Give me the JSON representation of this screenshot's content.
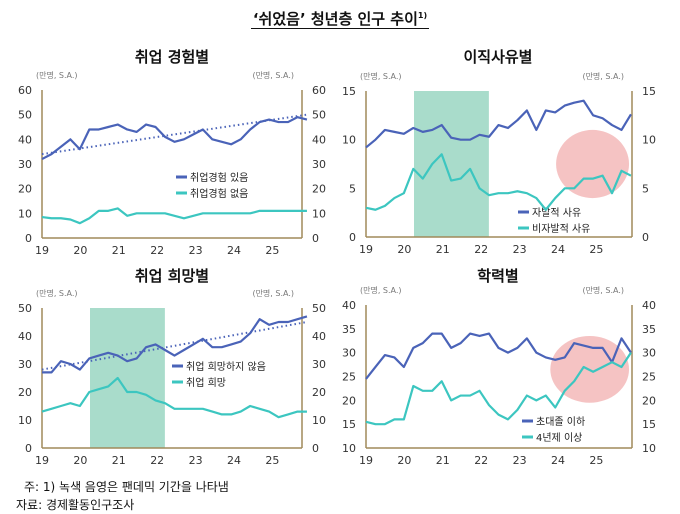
{
  "title": "‘쉬었음’ 청년층 인구 추이",
  "title_sup": "1)",
  "notes": {
    "note": "주: 1) 녹색 음영은 팬데믹 기간을 나타냄",
    "source": "자료: 경제활동인구조사"
  },
  "colors": {
    "blue": "#4a63b8",
    "cyan": "#3cc6c0",
    "shade": "#a9dccb",
    "highlight": "#f3b8b8",
    "axis": "#a08a5a",
    "trend": "#4a63b8"
  },
  "chart_data": [
    {
      "type": "line",
      "title": "취업 경험별",
      "unit_left": "(만명, S.A.)",
      "unit_right": "(만명, S.A.)",
      "xlim": [
        2019,
        2025.9
      ],
      "ylim": [
        0,
        60
      ],
      "yticks": [
        0,
        10,
        20,
        30,
        40,
        50,
        60
      ],
      "xticks": [
        "19",
        "20",
        "21",
        "22",
        "23",
        "24",
        "25"
      ],
      "shade": null,
      "highlight": null,
      "series": [
        {
          "name": "취업경험 있음",
          "color": "blue",
          "values": [
            32,
            34,
            37,
            40,
            36,
            44,
            44,
            45,
            46,
            44,
            43,
            46,
            45,
            41,
            39,
            40,
            42,
            44,
            40,
            39,
            38,
            40,
            44,
            47,
            48,
            47,
            47,
            49,
            48
          ]
        },
        {
          "name": "취업경험 없음",
          "color": "cyan",
          "values": [
            8.5,
            8,
            8,
            7.5,
            6,
            8,
            11,
            11,
            12,
            9,
            10,
            10,
            10,
            10,
            9,
            8,
            9,
            10,
            10,
            10,
            10,
            10,
            10,
            11,
            11,
            11,
            11,
            11,
            11
          ]
        }
      ],
      "trend": [
        34,
        50
      ]
    },
    {
      "type": "line",
      "title": "이직사유별",
      "unit_left": "(만명, S.A.)",
      "unit_right": "(만명, S.A.)",
      "xlim": [
        2019,
        2025.9
      ],
      "ylim": [
        0,
        15
      ],
      "yticks": [
        0,
        5,
        10,
        15
      ],
      "xticks": [
        "19",
        "20",
        "21",
        "22",
        "23",
        "24",
        "25"
      ],
      "shade": [
        2020.25,
        2022.2
      ],
      "highlight": {
        "x": [
          2023.95,
          2025.85
        ],
        "y": [
          4,
          11
        ]
      },
      "series": [
        {
          "name": "자발적 사유",
          "color": "blue",
          "values": [
            9.2,
            10,
            11,
            10.8,
            10.6,
            11.2,
            10.8,
            11,
            11.5,
            10.2,
            10,
            10,
            10.5,
            10.3,
            11.5,
            11.2,
            12,
            13,
            11,
            13,
            12.8,
            13.5,
            13.8,
            14,
            12.5,
            12.2,
            11.5,
            11,
            12.6
          ]
        },
        {
          "name": "비자발적 사유",
          "color": "cyan",
          "values": [
            3,
            2.8,
            3.2,
            4,
            4.5,
            7,
            6,
            7.5,
            8.5,
            5.8,
            6,
            7,
            5,
            4.3,
            4.5,
            4.5,
            4.7,
            4.5,
            4,
            2.8,
            4,
            5,
            5,
            6,
            6,
            6.3,
            4.5,
            6.8,
            6.3
          ]
        }
      ],
      "trend": null
    },
    {
      "type": "line",
      "title": "취업 희망별",
      "unit_left": "(만명, S.A.)",
      "unit_right": "(만명, S.A.)",
      "xlim": [
        2019,
        2025.9
      ],
      "ylim": [
        0,
        50
      ],
      "yticks": [
        0,
        10,
        20,
        30,
        40,
        50
      ],
      "xticks": [
        "19",
        "20",
        "21",
        "22",
        "23",
        "24",
        "25"
      ],
      "shade": [
        2020.25,
        2022.2
      ],
      "highlight": null,
      "series": [
        {
          "name": "취업 희망하지 않음",
          "color": "blue",
          "values": [
            27,
            27,
            31,
            30,
            28,
            32,
            33,
            34,
            33,
            31,
            32,
            36,
            37,
            35,
            33,
            35,
            37,
            39,
            36,
            36,
            37,
            38,
            41,
            46,
            44,
            45,
            45,
            46,
            47
          ]
        },
        {
          "name": "취업 희망",
          "color": "cyan",
          "values": [
            13,
            14,
            15,
            16,
            15,
            20,
            21,
            22,
            25,
            20,
            20,
            19,
            17,
            16,
            14,
            14,
            14,
            14,
            13,
            12,
            12,
            13,
            15,
            14,
            13,
            11,
            12,
            13,
            13
          ]
        }
      ],
      "trend": [
        28,
        45
      ]
    },
    {
      "type": "line",
      "title": "학력별",
      "unit_left": "(만명, S.A.)",
      "unit_right": "(만명, S.A.)",
      "xlim": [
        2019,
        2025.9
      ],
      "ylim": [
        10,
        40
      ],
      "yticks": [
        10,
        15,
        20,
        25,
        30,
        35,
        40
      ],
      "xticks": [
        "19",
        "20",
        "21",
        "22",
        "23",
        "24",
        "25"
      ],
      "shade": null,
      "highlight": {
        "x": [
          2023.8,
          2025.85
        ],
        "y": [
          19.5,
          33.5
        ]
      },
      "series": [
        {
          "name": "초대졸 이하",
          "color": "blue",
          "values": [
            24.5,
            27,
            29.5,
            29,
            27,
            31,
            32,
            34,
            34,
            31,
            32,
            34,
            33.5,
            34,
            31,
            30,
            31,
            33,
            30,
            29,
            28.5,
            29,
            32,
            31.5,
            31,
            31,
            28,
            33,
            30
          ]
        },
        {
          "name": "4년제 이상",
          "color": "cyan",
          "values": [
            15.5,
            15,
            15,
            16,
            16,
            23,
            22,
            22,
            24,
            20,
            21,
            21,
            22,
            19,
            17,
            16,
            18,
            21,
            20,
            21,
            18.5,
            22,
            24,
            27,
            26,
            27,
            28,
            27,
            30
          ]
        }
      ],
      "trend": null
    }
  ]
}
